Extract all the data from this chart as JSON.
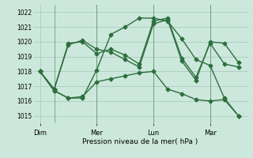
{
  "background_color": "#cce8dc",
  "grid_color": "#aaccbb",
  "line_color": "#2d6e3e",
  "marker": "D",
  "markersize": 2.5,
  "linewidth": 1.0,
  "xlabel": "Pression niveau de la mer( hPa )",
  "ylim": [
    1014.5,
    1022.5
  ],
  "yticks": [
    1015,
    1016,
    1017,
    1018,
    1019,
    1020,
    1021,
    1022
  ],
  "day_labels": [
    "Dim",
    "Mer",
    "Lun",
    "Mar"
  ],
  "day_positions": [
    0,
    12,
    24,
    36
  ],
  "vline_positions": [
    3,
    12,
    24,
    36
  ],
  "xlim": [
    -1.5,
    44
  ],
  "series": [
    {
      "x": [
        0,
        3,
        6,
        9,
        12,
        15,
        18,
        21,
        24,
        27,
        30,
        33,
        36,
        39,
        42
      ],
      "y": [
        1018.0,
        1016.8,
        1019.9,
        1020.0,
        1019.2,
        1019.5,
        1019.1,
        1018.5,
        1021.4,
        1021.6,
        1018.9,
        1017.6,
        1019.9,
        1018.5,
        1018.3
      ]
    },
    {
      "x": [
        0,
        3,
        6,
        9,
        12,
        15,
        18,
        21,
        24,
        27,
        30,
        33,
        36,
        39,
        42
      ],
      "y": [
        1018.0,
        1016.8,
        1019.8,
        1020.1,
        1019.5,
        1019.3,
        1018.8,
        1018.3,
        1021.2,
        1021.5,
        1018.7,
        1017.4,
        1020.0,
        1019.9,
        1018.6
      ]
    },
    {
      "x": [
        0,
        3,
        6,
        9,
        12,
        15,
        18,
        21,
        24,
        27,
        30,
        33,
        36,
        39,
        42
      ],
      "y": [
        1018.0,
        1016.7,
        1016.2,
        1016.3,
        1017.3,
        1017.5,
        1017.7,
        1017.9,
        1018.0,
        1016.8,
        1016.5,
        1016.1,
        1016.0,
        1016.1,
        1015.0
      ]
    },
    {
      "x": [
        0,
        3,
        6,
        9,
        12,
        15,
        18,
        21,
        24,
        27,
        30,
        33,
        36,
        39,
        42
      ],
      "y": [
        1018.0,
        1016.7,
        1016.2,
        1016.2,
        1018.1,
        1020.5,
        1021.0,
        1021.6,
        1021.6,
        1021.4,
        1020.2,
        1018.8,
        1018.4,
        1016.2,
        1015.0
      ]
    }
  ]
}
